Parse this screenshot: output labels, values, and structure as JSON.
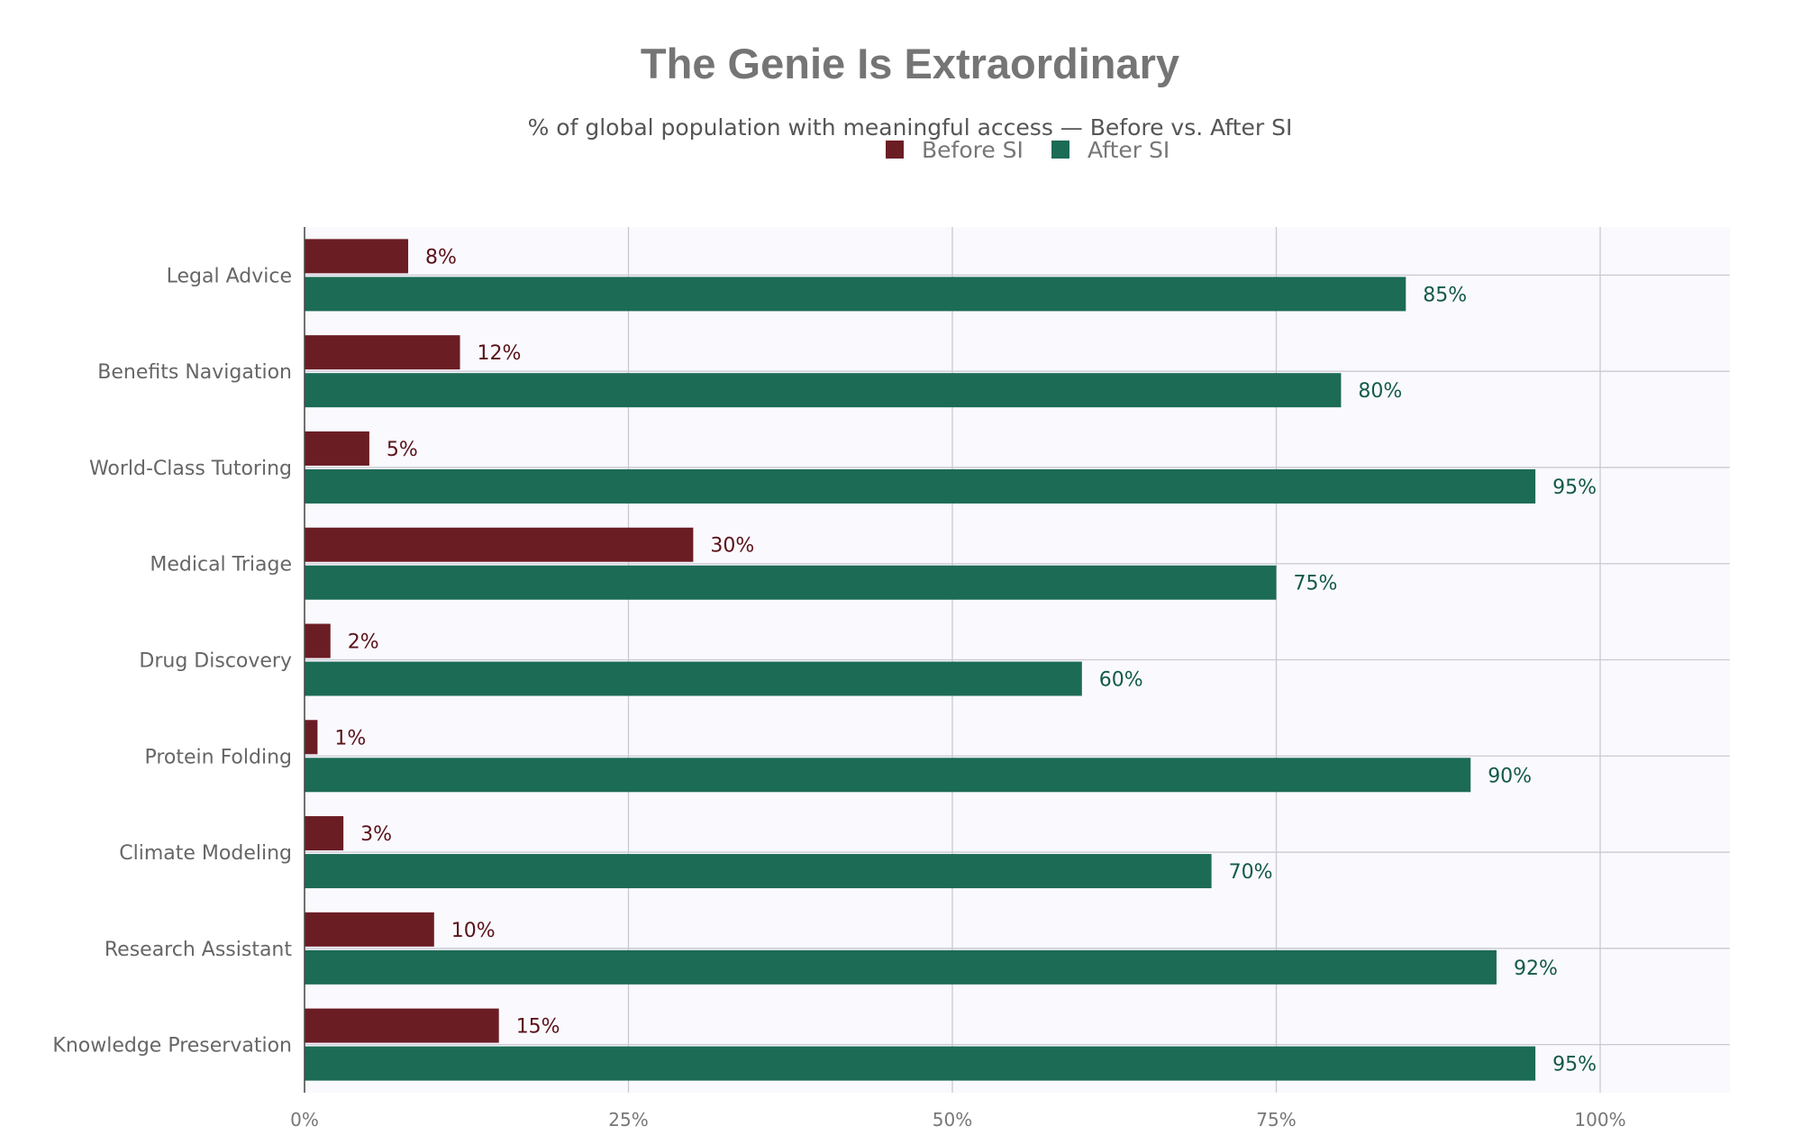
{
  "chart_data": {
    "type": "bar",
    "orientation": "horizontal",
    "title": "The Genie Is Extraordinary",
    "subtitle": "% of global population with meaningful access — Before vs. After SI",
    "categories": [
      "Legal Advice",
      "Benefits Navigation",
      "World-Class Tutoring",
      "Medical Triage",
      "Drug Discovery",
      "Protein Folding",
      "Climate Modeling",
      "Research Assistant",
      "Knowledge Preservation"
    ],
    "series": [
      {
        "name": "Before SI",
        "color": "#6b1d24",
        "label_color": "#5a1219",
        "values": [
          8,
          12,
          5,
          30,
          2,
          1,
          3,
          10,
          15
        ]
      },
      {
        "name": "After SI",
        "color": "#1c6b55",
        "label_color": "#145a47",
        "values": [
          85,
          80,
          95,
          75,
          60,
          90,
          70,
          92,
          95
        ]
      }
    ],
    "value_suffix": "%",
    "x_ticks": [
      0,
      25,
      50,
      75,
      100
    ],
    "x_tick_labels": [
      "0%",
      "25%",
      "50%",
      "75%",
      "100%"
    ],
    "xlim": [
      0,
      110
    ],
    "grid": true,
    "legend_position": "top-center",
    "plot_background": "#f9f9fe",
    "grid_color": "#c9c9d2"
  }
}
